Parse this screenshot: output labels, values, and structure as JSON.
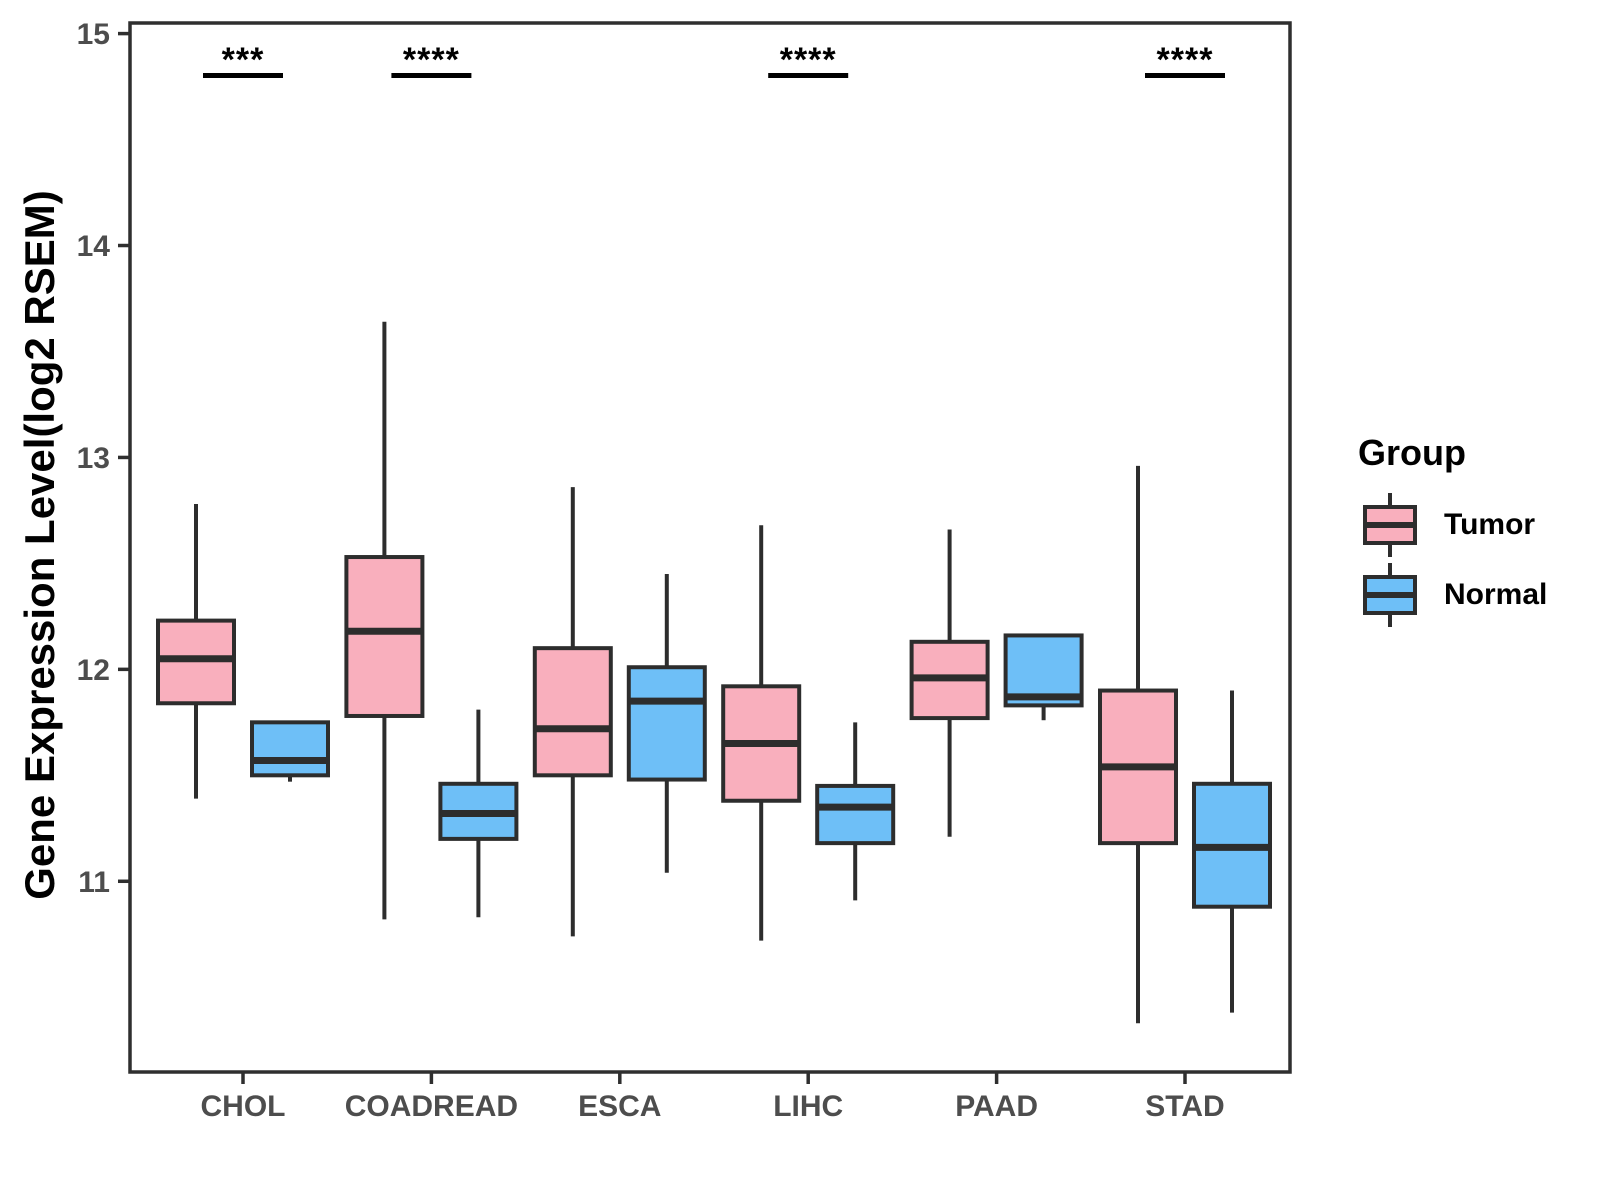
{
  "figure_title": "",
  "chart_data": {
    "type": "boxplot",
    "title": "",
    "xlabel": "",
    "ylabel": "Gene Expression Level(log2 RSEM)",
    "categories": [
      "CHOL",
      "COADREAD",
      "ESCA",
      "LIHC",
      "PAAD",
      "STAD"
    ],
    "groups": [
      {
        "name": "Tumor",
        "color": "#F9AFBD"
      },
      {
        "name": "Normal",
        "color": "#6EBFF7"
      }
    ],
    "y_ticks": [
      11,
      12,
      13,
      14,
      15
    ],
    "ylim": [
      10.1,
      15.05
    ],
    "grid": "off",
    "legend_position": "right",
    "stroke_color": "#2d2d2d",
    "tick_label_color": "#4d4d4d",
    "significance": [
      {
        "category": "CHOL",
        "label": "***"
      },
      {
        "category": "COADREAD",
        "label": "****"
      },
      {
        "category": "LIHC",
        "label": "****"
      },
      {
        "category": "STAD",
        "label": "****"
      }
    ],
    "series": [
      {
        "category": "CHOL",
        "group": "Tumor",
        "low": 11.39,
        "q1": 11.84,
        "median": 12.05,
        "q3": 12.23,
        "high": 12.78
      },
      {
        "category": "CHOL",
        "group": "Normal",
        "low": 11.47,
        "q1": 11.5,
        "median": 11.57,
        "q3": 11.75,
        "high": 11.75
      },
      {
        "category": "COADREAD",
        "group": "Tumor",
        "low": 10.82,
        "q1": 11.78,
        "median": 12.18,
        "q3": 12.53,
        "high": 13.64
      },
      {
        "category": "COADREAD",
        "group": "Normal",
        "low": 10.83,
        "q1": 11.2,
        "median": 11.32,
        "q3": 11.46,
        "high": 11.81
      },
      {
        "category": "ESCA",
        "group": "Tumor",
        "low": 10.74,
        "q1": 11.5,
        "median": 11.72,
        "q3": 12.1,
        "high": 12.86
      },
      {
        "category": "ESCA",
        "group": "Normal",
        "low": 11.04,
        "q1": 11.48,
        "median": 11.85,
        "q3": 12.01,
        "high": 12.45
      },
      {
        "category": "LIHC",
        "group": "Tumor",
        "low": 10.72,
        "q1": 11.38,
        "median": 11.65,
        "q3": 11.92,
        "high": 12.68
      },
      {
        "category": "LIHC",
        "group": "Normal",
        "low": 10.91,
        "q1": 11.18,
        "median": 11.35,
        "q3": 11.45,
        "high": 11.75
      },
      {
        "category": "PAAD",
        "group": "Tumor",
        "low": 11.21,
        "q1": 11.77,
        "median": 11.96,
        "q3": 12.13,
        "high": 12.66
      },
      {
        "category": "PAAD",
        "group": "Normal",
        "low": 11.76,
        "q1": 11.83,
        "median": 11.87,
        "q3": 12.16,
        "high": 12.16
      },
      {
        "category": "STAD",
        "group": "Tumor",
        "low": 10.33,
        "q1": 11.18,
        "median": 11.54,
        "q3": 11.9,
        "high": 12.96
      },
      {
        "category": "STAD",
        "group": "Normal",
        "low": 10.38,
        "q1": 10.88,
        "median": 11.16,
        "q3": 11.46,
        "high": 11.9
      }
    ],
    "legend": {
      "title": "Group",
      "items": [
        "Tumor",
        "Normal"
      ]
    }
  }
}
